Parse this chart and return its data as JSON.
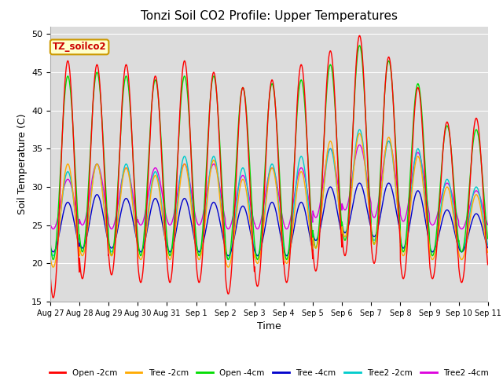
{
  "title": "Tonzi Soil CO2 Profile: Upper Temperatures",
  "ylabel": "Soil Temperature (C)",
  "xlabel": "Time",
  "ylim": [
    15,
    51
  ],
  "yticks": [
    15,
    20,
    25,
    30,
    35,
    40,
    45,
    50
  ],
  "annotation_text": "TZ_soilco2",
  "series_labels": [
    "Open -2cm",
    "Tree -2cm",
    "Open -4cm",
    "Tree -4cm",
    "Tree2 -2cm",
    "Tree2 -4cm"
  ],
  "series_colors": [
    "#ff0000",
    "#ffaa00",
    "#00dd00",
    "#0000cc",
    "#00cccc",
    "#dd00dd"
  ],
  "n_days": 15,
  "x_tick_labels": [
    "Aug 27",
    "Aug 28",
    "Aug 29",
    "Aug 30",
    "Aug 31",
    "Sep 1",
    "Sep 2",
    "Sep 3",
    "Sep 4",
    "Sep 5",
    "Sep 6",
    "Sep 7",
    "Sep 8",
    "Sep 9",
    "Sep 10",
    "Sep 11"
  ],
  "peaks_open2": [
    46.5,
    46.0,
    46.0,
    44.5,
    46.5,
    45.0,
    43.0,
    44.0,
    46.0,
    47.8,
    49.8,
    47.0,
    43.0,
    38.5,
    39.0
  ],
  "troughs_open2": [
    15.5,
    18.0,
    18.5,
    17.5,
    17.5,
    17.5,
    16.0,
    17.0,
    17.5,
    19.0,
    21.0,
    20.0,
    18.0,
    18.0,
    17.5
  ],
  "peaks_tree2cm": [
    33.0,
    33.0,
    32.5,
    31.5,
    33.0,
    33.5,
    31.0,
    32.5,
    32.0,
    36.0,
    37.0,
    36.5,
    34.0,
    30.0,
    29.0
  ],
  "troughs_tree2cm": [
    19.5,
    21.0,
    21.0,
    20.5,
    20.5,
    20.5,
    19.5,
    20.0,
    20.0,
    22.0,
    23.5,
    22.5,
    21.0,
    20.5,
    20.5
  ],
  "peaks_open4": [
    44.5,
    45.0,
    44.5,
    44.0,
    44.5,
    44.5,
    43.0,
    43.5,
    44.0,
    46.0,
    48.5,
    46.5,
    43.5,
    38.0,
    37.5
  ],
  "troughs_open4": [
    20.5,
    21.5,
    21.0,
    21.0,
    21.0,
    21.0,
    20.5,
    20.5,
    20.5,
    22.0,
    23.0,
    22.5,
    21.5,
    21.0,
    21.5
  ],
  "peaks_tree4cm": [
    28.0,
    29.0,
    28.5,
    28.5,
    28.5,
    28.0,
    27.5,
    28.0,
    28.0,
    30.0,
    30.5,
    30.5,
    29.5,
    27.0,
    26.5
  ],
  "troughs_tree4cm": [
    21.5,
    22.0,
    22.0,
    21.5,
    21.5,
    21.5,
    21.0,
    21.0,
    21.0,
    23.0,
    24.0,
    23.5,
    22.0,
    21.5,
    21.5
  ],
  "peaks_tree2_2cm": [
    32.0,
    33.0,
    33.0,
    32.0,
    34.0,
    34.0,
    32.5,
    33.0,
    34.0,
    35.0,
    37.5,
    36.0,
    35.0,
    31.0,
    30.0
  ],
  "troughs_tree2_2cm": [
    21.0,
    22.0,
    21.5,
    21.5,
    21.5,
    21.5,
    20.5,
    21.0,
    21.0,
    23.0,
    24.0,
    23.0,
    22.0,
    21.5,
    21.5
  ],
  "peaks_tree2_4cm": [
    31.0,
    33.0,
    32.5,
    32.5,
    33.0,
    33.0,
    31.5,
    32.5,
    32.5,
    35.0,
    35.5,
    36.0,
    34.5,
    30.5,
    29.5
  ],
  "troughs_tree2_4cm": [
    24.5,
    25.0,
    24.5,
    25.0,
    25.0,
    25.0,
    24.5,
    24.5,
    24.5,
    26.0,
    27.0,
    26.0,
    25.5,
    25.0,
    24.5
  ],
  "fig_bg_color": "#ffffff",
  "plot_bg_color": "#dcdcdc",
  "grid_color": "#ffffff",
  "peak_time": 0.6,
  "trough_time": 0.25,
  "linewidth": 1.0
}
